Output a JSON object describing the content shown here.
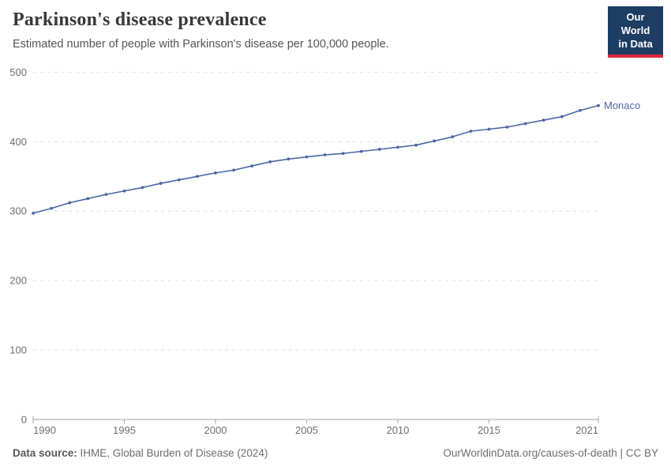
{
  "header": {
    "title": "Parkinson's disease prevalence",
    "subtitle": "Estimated number of people with Parkinson's disease per 100,000 people.",
    "logo": {
      "line1": "Our World",
      "line2": "in Data",
      "bg_color": "#1d3d63",
      "accent_color": "#e0243c"
    }
  },
  "chart_data": {
    "type": "line",
    "title": "Parkinson's disease prevalence",
    "xlabel": "",
    "ylabel": "",
    "xlim": [
      1990,
      2021
    ],
    "ylim": [
      0,
      500
    ],
    "x_ticks": [
      1990,
      1995,
      2000,
      2005,
      2010,
      2015,
      2021
    ],
    "y_ticks": [
      0,
      100,
      200,
      300,
      400,
      500
    ],
    "grid": "horizontal-dashed",
    "legend_position": "end-of-line-label",
    "series": [
      {
        "name": "Monaco",
        "color": "#4a69a4",
        "x": [
          1990,
          1991,
          1992,
          1993,
          1994,
          1995,
          1996,
          1997,
          1998,
          1999,
          2000,
          2001,
          2002,
          2003,
          2004,
          2005,
          2006,
          2007,
          2008,
          2009,
          2010,
          2011,
          2012,
          2013,
          2014,
          2015,
          2016,
          2017,
          2018,
          2019,
          2020,
          2021
        ],
        "values": [
          297,
          304,
          312,
          318,
          324,
          329,
          334,
          340,
          345,
          350,
          355,
          359,
          365,
          371,
          375,
          378,
          381,
          383,
          386,
          389,
          392,
          395,
          401,
          407,
          415,
          418,
          421,
          426,
          431,
          436,
          445,
          452
        ]
      }
    ],
    "axis_color": "#a5a5a5",
    "gridline_color": "#e0e0e0",
    "tick_label_color": "#6f6f6f"
  },
  "footer": {
    "source_label": "Data source:",
    "source_text": " IHME, Global Burden of Disease (2024)",
    "credit": "OurWorldinData.org/causes-of-death | CC BY"
  }
}
